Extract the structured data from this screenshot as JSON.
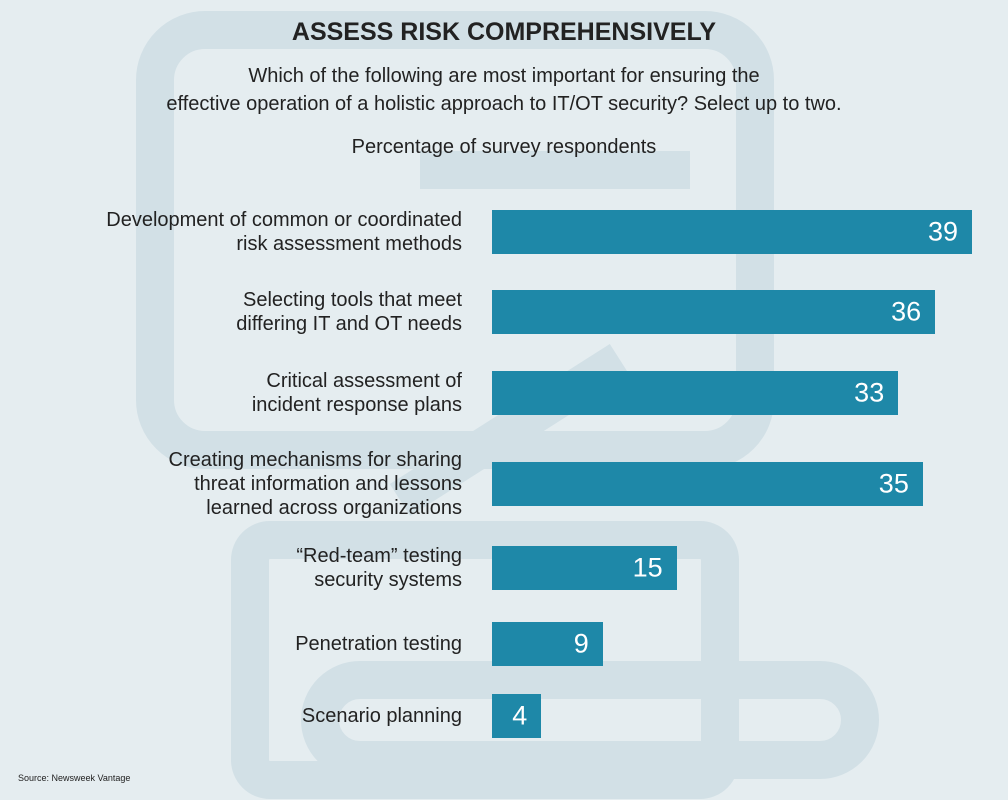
{
  "chart_data": {
    "type": "bar",
    "orientation": "horizontal",
    "title": "ASSESS RISK COMPREHENSIVELY",
    "subtitle": "Which of the following are most important for ensuring the\neffective operation of a holistic approach to IT/OT security? Select up to two.",
    "axis_label": "Percentage of survey respondents",
    "categories": [
      "Development of common or coordinated\nrisk assessment methods",
      "Selecting tools that meet\ndiffering IT and OT needs",
      "Critical assessment of\nincident response plans",
      "Creating mechanisms for sharing\nthreat information and lessons\nlearned across organizations",
      "“Red-team” testing\nsecurity systems",
      "Penetration testing",
      "Scenario planning"
    ],
    "values": [
      39,
      36,
      33,
      35,
      15,
      9,
      4
    ],
    "color": "#1e88a8",
    "source": "Source: Newsweek Vantage"
  }
}
